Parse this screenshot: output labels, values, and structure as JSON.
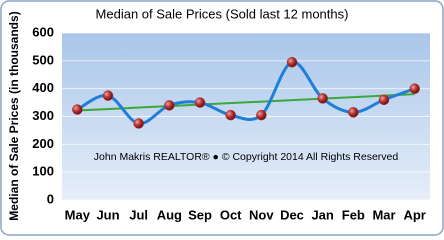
{
  "chart_data": {
    "type": "line",
    "title": "Median of Sale Prices (Sold last 12 months)",
    "y_label": "Median of Sale Prices (in thousands)",
    "annotation": "John Makris REALTOR®  ●  © Copyright 2014 All Rights Reserved",
    "categories": [
      "May",
      "Jun",
      "Jul",
      "Aug",
      "Sep",
      "Oct",
      "Nov",
      "Dec",
      "Jan",
      "Feb",
      "Mar",
      "Apr"
    ],
    "series": [
      {
        "color": "#1f7fd8",
        "marker_color": "#b03030",
        "values": [
          325,
          375,
          275,
          340,
          350,
          305,
          305,
          495,
          365,
          315,
          360,
          400
        ]
      }
    ],
    "trendline": true,
    "trendline_color": "#3aa83a",
    "ylim": [
      0,
      600
    ],
    "yticks": [
      0,
      100,
      200,
      300,
      400,
      500,
      600
    ],
    "grid": true
  }
}
